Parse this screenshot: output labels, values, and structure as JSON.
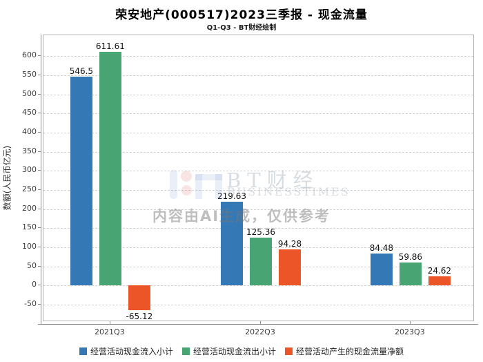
{
  "title": "荣安地产(000517)2023三季报 - 现金流量",
  "subtitle": "Q1-Q3 - BT财经绘制",
  "watermark": {
    "brand": "BT财经",
    "brand_sub": "BUSINESSTIMES",
    "disclaimer": "内容由AI生成，仅供参考"
  },
  "chart_data": {
    "type": "bar",
    "title": "荣安地产(000517)2023三季报 - 现金流量",
    "subtitle": "Q1-Q3 - BT财经绘制",
    "categories": [
      "2021Q3",
      "2022Q3",
      "2023Q3"
    ],
    "series": [
      {
        "name": "经营活动现金流入小计",
        "color": "#3478b6",
        "values": [
          546.5,
          219.63,
          84.48
        ]
      },
      {
        "name": "经营活动现金流出小计",
        "color": "#49a474",
        "values": [
          611.61,
          125.36,
          59.86
        ]
      },
      {
        "name": "经营活动产生的现金流量净额",
        "color": "#eb5528",
        "values": [
          -65.12,
          94.28,
          24.62
        ]
      }
    ],
    "xlabel": "",
    "ylabel": "数额(人民币亿元)",
    "yticks": [
      600,
      550,
      500,
      450,
      400,
      350,
      300,
      250,
      200,
      150,
      100,
      50,
      0,
      -50
    ],
    "ylim": [
      -95,
      655
    ],
    "grid": true,
    "grid_style": "dashed",
    "legend_position": "bottom",
    "bar_value_labels": true
  }
}
